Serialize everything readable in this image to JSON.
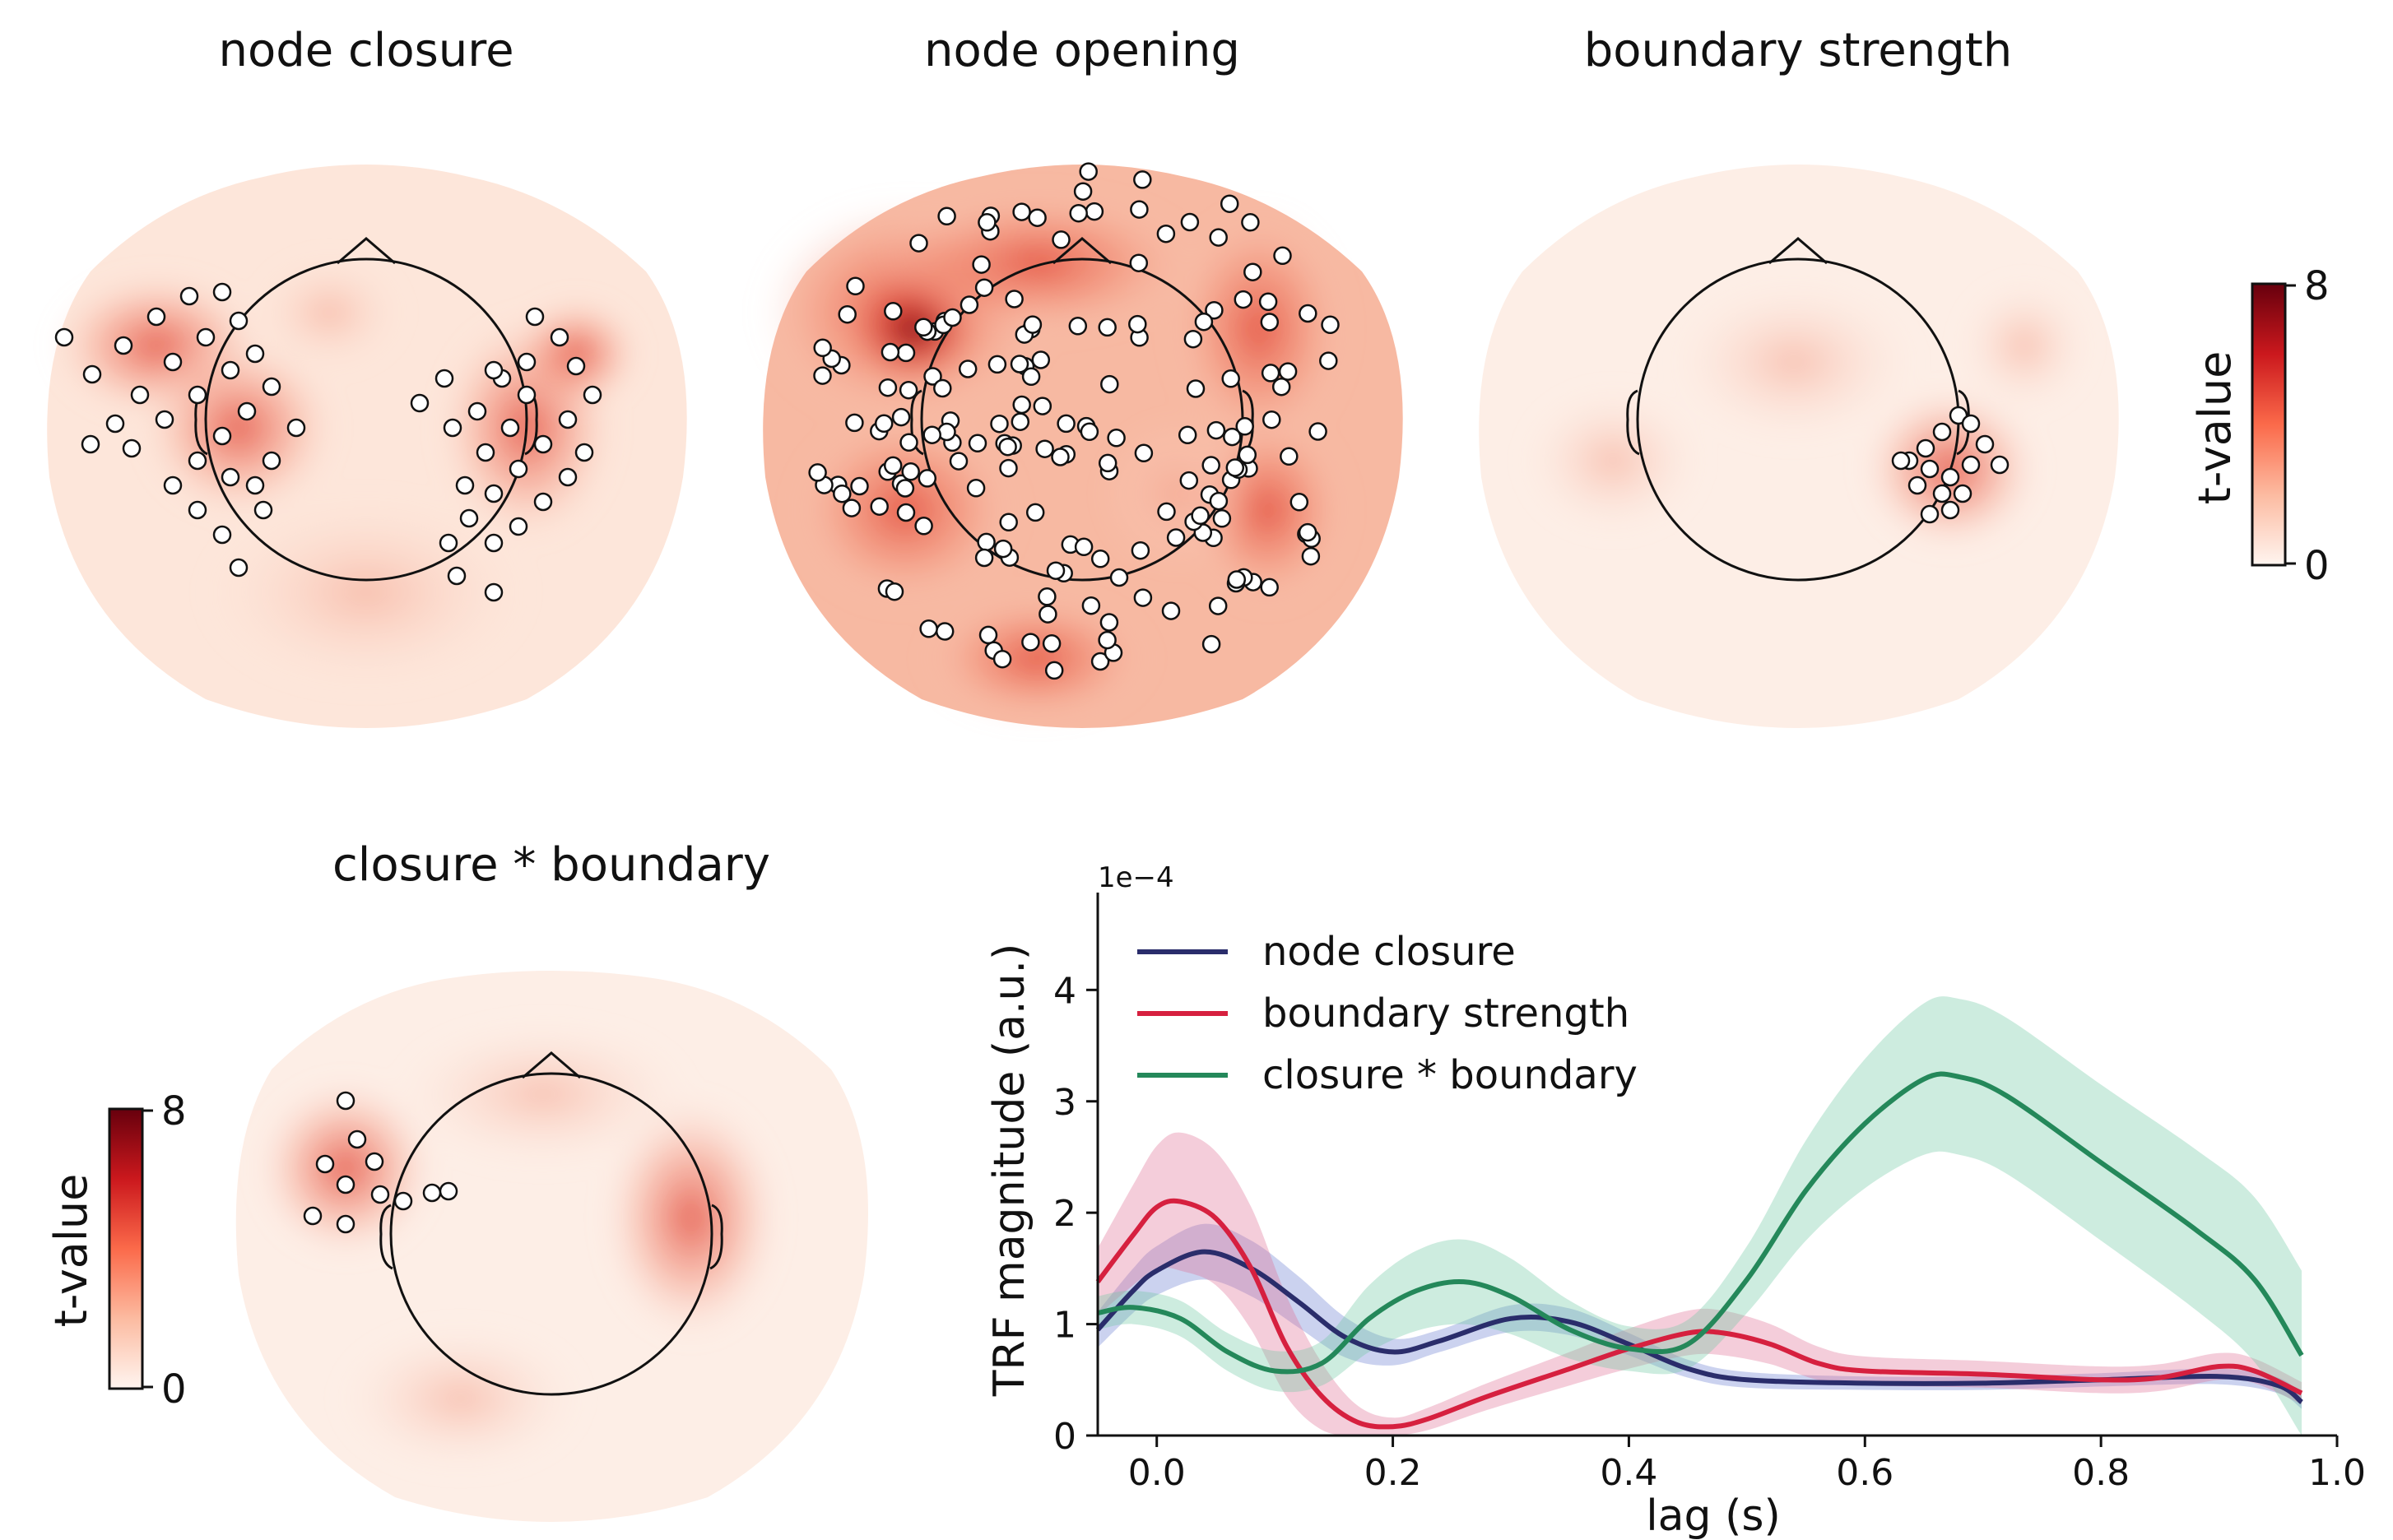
{
  "topomaps": [
    {
      "title": "node closure",
      "cx": 445,
      "cy": 530,
      "rx": 392,
      "ry": 350
    },
    {
      "title": "node opening",
      "cx": 1315,
      "cy": 530,
      "rx": 392,
      "ry": 350
    },
    {
      "title": "boundary strength",
      "cx": 2185,
      "cy": 530,
      "rx": 392,
      "ry": 350
    },
    {
      "title": "closure * boundary",
      "cx": 670,
      "cy": 1520,
      "rx": 392,
      "ry": 340
    }
  ],
  "colorbar": {
    "label": "t-value",
    "max_label": "8",
    "min_label": "0",
    "min": 0,
    "max": 8
  },
  "chart_data": {
    "type": "line",
    "xlabel": "lag (s)",
    "ylabel": "TRF magnitude (a.u.)",
    "y_offset_label": "1e−4",
    "xlim": [
      -0.05,
      1.0
    ],
    "ylim": [
      0,
      4.8
    ],
    "x_ticks": [
      "0.0",
      "0.2",
      "0.4",
      "0.6",
      "0.8",
      "1.0"
    ],
    "y_ticks": [
      "0",
      "1",
      "2",
      "3",
      "4"
    ],
    "legend_position": "top-left",
    "series": [
      {
        "name": "node closure",
        "color": "#2a2d6b",
        "band_color": "#6a7fd0",
        "points": [
          [
            -0.05,
            0.95
          ],
          [
            -0.02,
            1.3
          ],
          [
            0.0,
            1.48
          ],
          [
            0.04,
            1.65
          ],
          [
            0.08,
            1.5
          ],
          [
            0.12,
            1.2
          ],
          [
            0.16,
            0.88
          ],
          [
            0.2,
            0.75
          ],
          [
            0.24,
            0.85
          ],
          [
            0.3,
            1.05
          ],
          [
            0.35,
            1.02
          ],
          [
            0.4,
            0.82
          ],
          [
            0.45,
            0.6
          ],
          [
            0.5,
            0.5
          ],
          [
            0.6,
            0.47
          ],
          [
            0.7,
            0.47
          ],
          [
            0.8,
            0.5
          ],
          [
            0.9,
            0.53
          ],
          [
            0.95,
            0.45
          ],
          [
            0.97,
            0.3
          ]
        ],
        "band": [
          0.16,
          0.2,
          0.22,
          0.25,
          0.25,
          0.23,
          0.18,
          0.12,
          0.1,
          0.12,
          0.12,
          0.1,
          0.08,
          0.07,
          0.06,
          0.06,
          0.06,
          0.07,
          0.07,
          0.06
        ]
      },
      {
        "name": "boundary strength",
        "color": "#d6203f",
        "band_color": "#e07095",
        "points": [
          [
            -0.05,
            1.38
          ],
          [
            -0.02,
            1.8
          ],
          [
            0.0,
            2.05
          ],
          [
            0.02,
            2.1
          ],
          [
            0.05,
            1.95
          ],
          [
            0.08,
            1.5
          ],
          [
            0.11,
            0.8
          ],
          [
            0.14,
            0.35
          ],
          [
            0.17,
            0.12
          ],
          [
            0.2,
            0.08
          ],
          [
            0.23,
            0.15
          ],
          [
            0.28,
            0.35
          ],
          [
            0.35,
            0.6
          ],
          [
            0.4,
            0.78
          ],
          [
            0.45,
            0.92
          ],
          [
            0.48,
            0.92
          ],
          [
            0.52,
            0.82
          ],
          [
            0.56,
            0.65
          ],
          [
            0.6,
            0.58
          ],
          [
            0.7,
            0.55
          ],
          [
            0.8,
            0.5
          ],
          [
            0.85,
            0.52
          ],
          [
            0.9,
            0.62
          ],
          [
            0.93,
            0.58
          ],
          [
            0.97,
            0.38
          ]
        ],
        "band": [
          0.3,
          0.45,
          0.55,
          0.62,
          0.6,
          0.55,
          0.45,
          0.3,
          0.15,
          0.08,
          0.1,
          0.12,
          0.15,
          0.18,
          0.2,
          0.2,
          0.18,
          0.15,
          0.13,
          0.12,
          0.12,
          0.12,
          0.12,
          0.11,
          0.1
        ]
      },
      {
        "name": "closure * boundary",
        "color": "#24885a",
        "band_color": "#70c9a3",
        "points": [
          [
            -0.05,
            1.1
          ],
          [
            -0.02,
            1.15
          ],
          [
            0.02,
            1.05
          ],
          [
            0.06,
            0.75
          ],
          [
            0.1,
            0.58
          ],
          [
            0.14,
            0.65
          ],
          [
            0.18,
            1.05
          ],
          [
            0.22,
            1.3
          ],
          [
            0.26,
            1.38
          ],
          [
            0.3,
            1.25
          ],
          [
            0.35,
            0.95
          ],
          [
            0.4,
            0.78
          ],
          [
            0.45,
            0.82
          ],
          [
            0.5,
            1.4
          ],
          [
            0.55,
            2.2
          ],
          [
            0.6,
            2.8
          ],
          [
            0.65,
            3.2
          ],
          [
            0.68,
            3.22
          ],
          [
            0.72,
            3.05
          ],
          [
            0.8,
            2.45
          ],
          [
            0.88,
            1.85
          ],
          [
            0.93,
            1.4
          ],
          [
            0.97,
            0.72
          ]
        ],
        "band": [
          0.15,
          0.15,
          0.16,
          0.17,
          0.18,
          0.2,
          0.3,
          0.36,
          0.38,
          0.34,
          0.26,
          0.2,
          0.22,
          0.3,
          0.45,
          0.58,
          0.68,
          0.7,
          0.7,
          0.7,
          0.72,
          0.74,
          0.76
        ]
      }
    ]
  }
}
